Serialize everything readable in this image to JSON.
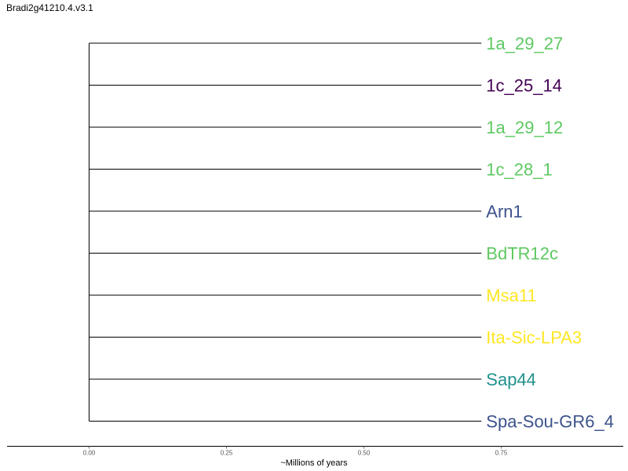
{
  "chart_data": {
    "type": "dendrogram",
    "title": "Bradi2g41210.4.v3.1",
    "xlabel": "~Millions of years",
    "xlim": [
      -0.15,
      1.0
    ],
    "xticks": [
      0.0,
      0.25,
      0.5,
      0.75
    ],
    "xtick_labels": [
      "0.00",
      "0.25",
      "0.50",
      "0.75"
    ],
    "root_x": 0.0,
    "leaves": [
      {
        "label": "1a_29_27",
        "branch_end": 0.714,
        "color": "#5ec962"
      },
      {
        "label": "1c_25_14",
        "branch_end": 0.714,
        "color": "#440154"
      },
      {
        "label": "1a_29_12",
        "branch_end": 0.714,
        "color": "#5ec962"
      },
      {
        "label": "1c_28_1",
        "branch_end": 0.714,
        "color": "#5ec962"
      },
      {
        "label": "Arn1",
        "branch_end": 0.714,
        "color": "#3b528b"
      },
      {
        "label": "BdTR12c",
        "branch_end": 0.714,
        "color": "#5ec962"
      },
      {
        "label": "Msa11",
        "branch_end": 0.714,
        "color": "#fde725"
      },
      {
        "label": "Ita-Sic-LPA3",
        "branch_end": 0.714,
        "color": "#fde725"
      },
      {
        "label": "Sap44",
        "branch_end": 0.714,
        "color": "#21918c"
      },
      {
        "label": "Spa-Sou-GR6_4",
        "branch_end": 0.714,
        "color": "#3b528b"
      }
    ],
    "grid": false,
    "legend": "none"
  }
}
